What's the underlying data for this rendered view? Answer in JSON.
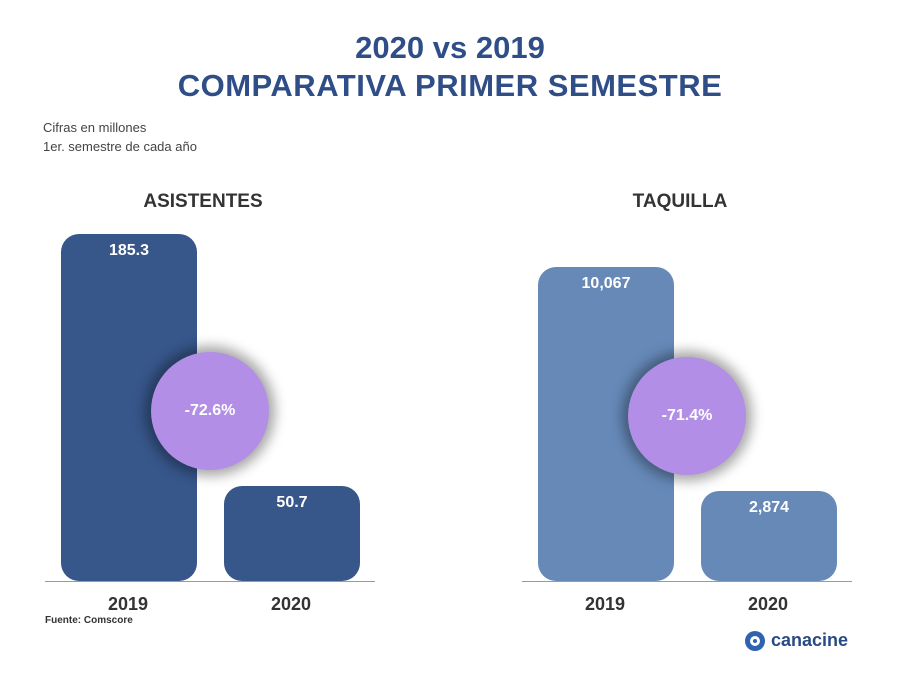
{
  "title_line1": "2020 vs 2019",
  "title_line2": "COMPARATIVA PRIMER SEMESTRE",
  "notes": [
    "Cifras en millones",
    "1er. semestre de cada año"
  ],
  "source": "Fuente: Comscore",
  "logo_text": "canacine",
  "colors": {
    "asistentes_bar": "#37568a",
    "taquilla_bar": "#6689b8",
    "bubble": "#b38ee6",
    "title": "#2f4d86"
  },
  "chart_data": [
    {
      "type": "bar",
      "title": "ASISTENTES",
      "categories": [
        "2019",
        "2020"
      ],
      "values": [
        185.3,
        50.7
      ],
      "value_labels": [
        "185.3",
        "50.7"
      ],
      "change_label": "-72.6%"
    },
    {
      "type": "bar",
      "title": "TAQUILLA",
      "categories": [
        "2019",
        "2020"
      ],
      "values": [
        10067,
        2874
      ],
      "value_labels": [
        "10,067",
        "2,874"
      ],
      "change_label": "-71.4%"
    }
  ]
}
